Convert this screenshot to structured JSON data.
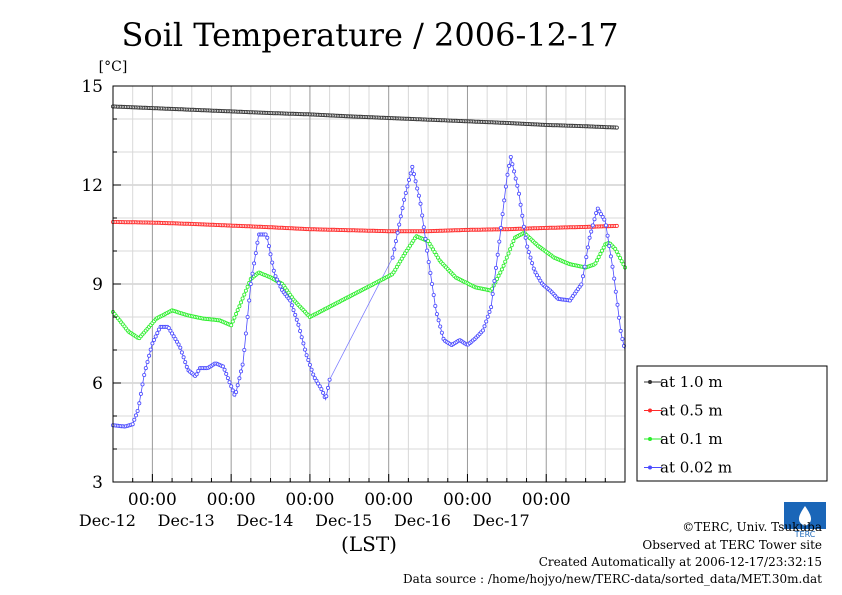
{
  "chart_data": {
    "type": "line",
    "title": "Soil Temperature / 2006-12-17",
    "ylabel": "[°C]",
    "xlabel": "(LST)",
    "ylim": [
      3,
      15
    ],
    "yticks": [
      3,
      6,
      9,
      12,
      15
    ],
    "x_unit": "days since Dec-11 00:00",
    "xlim": [
      11.5,
      18.0
    ],
    "xticks": [
      {
        "x": 12,
        "time": "00:00",
        "date": "Dec-12"
      },
      {
        "x": 13,
        "time": "00:00",
        "date": "Dec-13"
      },
      {
        "x": 14,
        "time": "00:00",
        "date": "Dec-14"
      },
      {
        "x": 15,
        "time": "00:00",
        "date": "Dec-15"
      },
      {
        "x": 16,
        "time": "00:00",
        "date": "Dec-16"
      },
      {
        "x": 17,
        "time": "00:00",
        "date": "Dec-17"
      }
    ],
    "grid": true,
    "legend_position": "right",
    "series": [
      {
        "name": "at 1.0 m",
        "color": "#333333",
        "points": [
          [
            11.5,
            14.38
          ],
          [
            12.0,
            14.33
          ],
          [
            12.5,
            14.28
          ],
          [
            13.0,
            14.23
          ],
          [
            13.5,
            14.18
          ],
          [
            14.0,
            14.14
          ],
          [
            14.5,
            14.08
          ],
          [
            15.0,
            14.03
          ],
          [
            15.5,
            13.98
          ],
          [
            16.0,
            13.93
          ],
          [
            16.5,
            13.88
          ],
          [
            17.0,
            13.82
          ],
          [
            17.5,
            13.78
          ],
          [
            17.9,
            13.74
          ]
        ],
        "gaps": [
          [
            14.0,
            15.05
          ]
        ]
      },
      {
        "name": "at 0.5 m",
        "color": "#ff2a2a",
        "points": [
          [
            11.5,
            10.88
          ],
          [
            12.0,
            10.86
          ],
          [
            12.5,
            10.82
          ],
          [
            13.0,
            10.77
          ],
          [
            13.5,
            10.72
          ],
          [
            14.0,
            10.66
          ],
          [
            14.5,
            10.63
          ],
          [
            15.0,
            10.6
          ],
          [
            15.5,
            10.6
          ],
          [
            16.0,
            10.64
          ],
          [
            16.5,
            10.66
          ],
          [
            17.0,
            10.7
          ],
          [
            17.5,
            10.73
          ],
          [
            17.9,
            10.76
          ]
        ],
        "gaps": [
          [
            14.0,
            15.05
          ]
        ]
      },
      {
        "name": "at 0.1 m",
        "color": "#2aee2a",
        "points": [
          [
            11.5,
            8.15
          ],
          [
            11.7,
            7.55
          ],
          [
            11.83,
            7.35
          ],
          [
            12.05,
            7.95
          ],
          [
            12.25,
            8.2
          ],
          [
            12.45,
            8.05
          ],
          [
            12.65,
            7.95
          ],
          [
            12.85,
            7.9
          ],
          [
            13.0,
            7.75
          ],
          [
            13.1,
            8.3
          ],
          [
            13.25,
            9.15
          ],
          [
            13.35,
            9.35
          ],
          [
            13.5,
            9.2
          ],
          [
            13.65,
            9.0
          ],
          [
            13.8,
            8.5
          ],
          [
            14.0,
            8.0
          ],
          [
            15.05,
            9.3
          ],
          [
            15.2,
            9.9
          ],
          [
            15.35,
            10.45
          ],
          [
            15.5,
            10.3
          ],
          [
            15.65,
            9.7
          ],
          [
            15.85,
            9.2
          ],
          [
            16.1,
            8.9
          ],
          [
            16.3,
            8.8
          ],
          [
            16.45,
            9.5
          ],
          [
            16.6,
            10.4
          ],
          [
            16.72,
            10.55
          ],
          [
            16.9,
            10.15
          ],
          [
            17.1,
            9.8
          ],
          [
            17.3,
            9.6
          ],
          [
            17.5,
            9.5
          ],
          [
            17.62,
            9.6
          ],
          [
            17.75,
            10.2
          ],
          [
            17.8,
            10.25
          ],
          [
            17.88,
            10.05
          ],
          [
            18.0,
            9.5
          ]
        ],
        "gaps": []
      },
      {
        "name": "at 0.02 m",
        "color": "#4b4bff",
        "points": [
          [
            11.5,
            4.72
          ],
          [
            11.65,
            4.68
          ],
          [
            11.75,
            4.75
          ],
          [
            11.82,
            5.2
          ],
          [
            11.9,
            6.3
          ],
          [
            12.0,
            7.2
          ],
          [
            12.1,
            7.7
          ],
          [
            12.2,
            7.7
          ],
          [
            12.35,
            7.1
          ],
          [
            12.45,
            6.4
          ],
          [
            12.55,
            6.2
          ],
          [
            12.6,
            6.45
          ],
          [
            12.7,
            6.45
          ],
          [
            12.8,
            6.6
          ],
          [
            12.9,
            6.5
          ],
          [
            13.0,
            5.9
          ],
          [
            13.05,
            5.6
          ],
          [
            13.15,
            6.6
          ],
          [
            13.25,
            9.0
          ],
          [
            13.35,
            10.5
          ],
          [
            13.45,
            10.5
          ],
          [
            13.55,
            9.3
          ],
          [
            13.65,
            8.8
          ],
          [
            13.75,
            8.5
          ],
          [
            13.85,
            7.8
          ],
          [
            13.95,
            6.9
          ],
          [
            14.05,
            6.2
          ],
          [
            14.15,
            5.8
          ],
          [
            14.2,
            5.5
          ],
          [
            14.25,
            6.1
          ],
          [
            15.05,
            9.8
          ],
          [
            15.2,
            11.6
          ],
          [
            15.3,
            12.55
          ],
          [
            15.4,
            11.5
          ],
          [
            15.5,
            9.8
          ],
          [
            15.6,
            8.2
          ],
          [
            15.7,
            7.3
          ],
          [
            15.8,
            7.15
          ],
          [
            15.9,
            7.3
          ],
          [
            16.0,
            7.15
          ],
          [
            16.1,
            7.35
          ],
          [
            16.2,
            7.6
          ],
          [
            16.3,
            8.3
          ],
          [
            16.4,
            10.2
          ],
          [
            16.5,
            12.2
          ],
          [
            16.55,
            12.85
          ],
          [
            16.65,
            11.8
          ],
          [
            16.75,
            10.2
          ],
          [
            16.85,
            9.4
          ],
          [
            16.95,
            9.0
          ],
          [
            17.05,
            8.8
          ],
          [
            17.15,
            8.55
          ],
          [
            17.3,
            8.5
          ],
          [
            17.45,
            9.0
          ],
          [
            17.55,
            10.4
          ],
          [
            17.65,
            11.3
          ],
          [
            17.75,
            10.9
          ],
          [
            17.85,
            9.4
          ],
          [
            17.95,
            7.5
          ],
          [
            18.0,
            7.0
          ]
        ],
        "gaps": [
          [
            14.25,
            15.05
          ]
        ]
      }
    ]
  },
  "footer": {
    "copyright": "©TERC, Univ. Tsukuba",
    "observed": "Observed at TERC Tower site",
    "created": "Created Automatically at 2006-12-17/23:32:15",
    "source": "Data source : /home/hojyo/new/TERC-data/sorted_data/MET.30m.dat",
    "logo_text": "TERC"
  }
}
